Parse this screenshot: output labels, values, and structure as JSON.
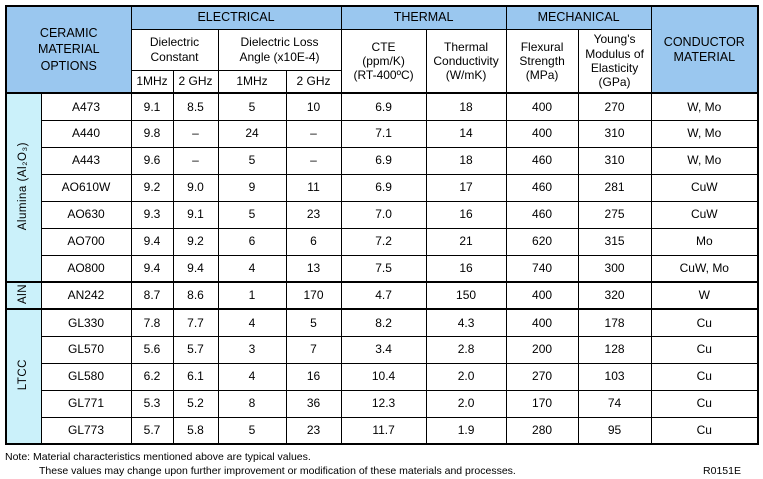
{
  "colors": {
    "header_blue": "#9AC7EF",
    "group_cyan": "#CBF1FA",
    "border": "#000000",
    "text": "#000000",
    "background": "#FFFFFF"
  },
  "table": {
    "corner_title": "CERAMIC\nMATERIAL\nOPTIONS",
    "top_groups": [
      "ELECTRICAL",
      "THERMAL",
      "MECHANICAL"
    ],
    "conductor_header": "CONDUCTOR\nMATERIAL",
    "sub_headers": {
      "dielectric_constant": "Dielectric\nConstant",
      "dielectric_loss": "Dielectric Loss\nAngle (x10E-4)",
      "cte": "CTE\n(ppm/K)\n(RT-400ºC)",
      "thermal_conductivity": "Thermal\nConductivity\n(W/mK)",
      "flexural_strength": "Flexural\nStrength\n(MPa)",
      "youngs_modulus": "Young's\nModulus of\nElasticity\n(GPa)"
    },
    "freq_headers": [
      "1MHz",
      "2 GHz",
      "1MHz",
      "2 GHz"
    ],
    "column_keys": [
      "dielectric-constant-1mhz",
      "dielectric-constant-2ghz",
      "loss-angle-1mhz",
      "loss-angle-2ghz",
      "cte",
      "thermal-conductivity",
      "flexural-strength",
      "youngs-modulus",
      "conductor-material"
    ],
    "groups": [
      {
        "label": "Alumina (Al₂O₃)",
        "rows": [
          {
            "material": "A473",
            "values": [
              "9.1",
              "8.5",
              "5",
              "10",
              "6.9",
              "18",
              "400",
              "270",
              "W, Mo"
            ]
          },
          {
            "material": "A440",
            "values": [
              "9.8",
              "–",
              "24",
              "–",
              "7.1",
              "14",
              "400",
              "310",
              "W, Mo"
            ]
          },
          {
            "material": "A443",
            "values": [
              "9.6",
              "–",
              "5",
              "–",
              "6.9",
              "18",
              "460",
              "310",
              "W, Mo"
            ]
          },
          {
            "material": "AO610W",
            "values": [
              "9.2",
              "9.0",
              "9",
              "11",
              "6.9",
              "17",
              "460",
              "281",
              "CuW"
            ]
          },
          {
            "material": "AO630",
            "values": [
              "9.3",
              "9.1",
              "5",
              "23",
              "7.0",
              "16",
              "460",
              "275",
              "CuW"
            ]
          },
          {
            "material": "AO700",
            "values": [
              "9.4",
              "9.2",
              "6",
              "6",
              "7.2",
              "21",
              "620",
              "315",
              "Mo"
            ]
          },
          {
            "material": "AO800",
            "values": [
              "9.4",
              "9.4",
              "4",
              "13",
              "7.5",
              "16",
              "740",
              "300",
              "CuW, Mo"
            ]
          }
        ]
      },
      {
        "label": "AlN",
        "rows": [
          {
            "material": "AN242",
            "values": [
              "8.7",
              "8.6",
              "1",
              "170",
              "4.7",
              "150",
              "400",
              "320",
              "W"
            ]
          }
        ]
      },
      {
        "label": "LTCC",
        "rows": [
          {
            "material": "GL330",
            "values": [
              "7.8",
              "7.7",
              "4",
              "5",
              "8.2",
              "4.3",
              "400",
              "178",
              "Cu"
            ]
          },
          {
            "material": "GL570",
            "values": [
              "5.6",
              "5.7",
              "3",
              "7",
              "3.4",
              "2.8",
              "200",
              "128",
              "Cu"
            ]
          },
          {
            "material": "GL580",
            "values": [
              "6.2",
              "6.1",
              "4",
              "16",
              "10.4",
              "2.0",
              "270",
              "103",
              "Cu"
            ]
          },
          {
            "material": "GL771",
            "values": [
              "5.3",
              "5.2",
              "8",
              "36",
              "12.3",
              "2.0",
              "170",
              "74",
              "Cu"
            ]
          },
          {
            "material": "GL773",
            "values": [
              "5.7",
              "5.8",
              "5",
              "23",
              "11.7",
              "1.9",
              "280",
              "95",
              "Cu"
            ]
          }
        ]
      }
    ]
  },
  "footer": {
    "note_line1": "Note: Material characteristics mentioned above are typical values.",
    "note_line2": "These values may change upon further improvement or modification of these materials and processes.",
    "ref": "R0151E"
  }
}
